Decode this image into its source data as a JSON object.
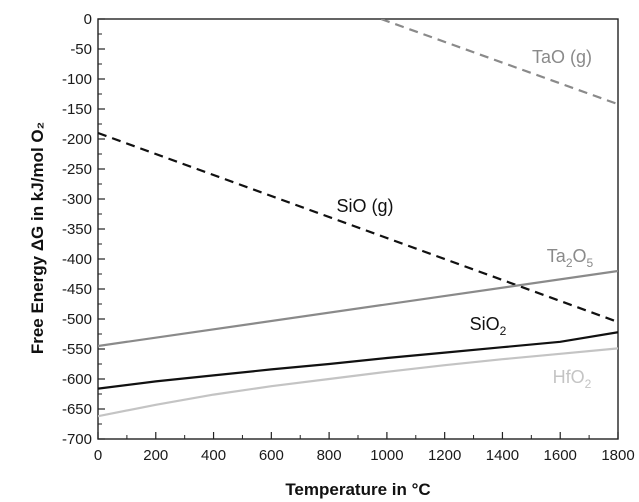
{
  "chart_data": {
    "type": "line",
    "title": "",
    "xlabel": "Temperature in °C",
    "ylabel": "Free Energy ΔG in kJ/mol O₂",
    "xlim": [
      0,
      1800
    ],
    "ylim": [
      -700,
      0
    ],
    "x_ticks": [
      0,
      200,
      400,
      600,
      800,
      1000,
      1200,
      1400,
      1600,
      1800
    ],
    "y_ticks": [
      0,
      -50,
      -100,
      -150,
      -200,
      -250,
      -300,
      -350,
      -400,
      -450,
      -500,
      -550,
      -600,
      -650,
      -700
    ],
    "grid": false,
    "series": [
      {
        "key": "tao",
        "name": "TaO (g)",
        "name_parts": [
          {
            "text": "TaO (g)",
            "sub": false
          }
        ],
        "style": "dashed",
        "color": "#8a8a8a",
        "x": [
          980,
          1800
        ],
        "y": [
          0,
          -142
        ]
      },
      {
        "key": "sio",
        "name": "SiO (g)",
        "name_parts": [
          {
            "text": "SiO (g)",
            "sub": false
          }
        ],
        "style": "dashed",
        "color": "#111111",
        "x": [
          0,
          1800
        ],
        "y": [
          -190,
          -505
        ]
      },
      {
        "key": "ta2o5",
        "name": "Ta2O5",
        "name_parts": [
          {
            "text": "Ta",
            "sub": false
          },
          {
            "text": "2",
            "sub": true
          },
          {
            "text": "O",
            "sub": false
          },
          {
            "text": "5",
            "sub": true
          }
        ],
        "style": "solid",
        "color": "#8a8a8a",
        "x": [
          0,
          1800
        ],
        "y": [
          -545,
          -420
        ]
      },
      {
        "key": "sio2",
        "name": "SiO2",
        "name_parts": [
          {
            "text": "SiO",
            "sub": false
          },
          {
            "text": "2",
            "sub": true
          }
        ],
        "style": "solid",
        "color": "#111111",
        "x": [
          0,
          200,
          400,
          600,
          800,
          1000,
          1200,
          1400,
          1600,
          1800
        ],
        "y": [
          -616,
          -604,
          -594,
          -584,
          -575,
          -565,
          -556,
          -547,
          -538,
          -522
        ]
      },
      {
        "key": "hfo2",
        "name": "HfO2",
        "name_parts": [
          {
            "text": "HfO",
            "sub": false
          },
          {
            "text": "2",
            "sub": true
          }
        ],
        "style": "solid",
        "color": "#c4c4c4",
        "x": [
          0,
          200,
          400,
          600,
          800,
          1000,
          1200,
          1400,
          1600,
          1800
        ],
        "y": [
          -662,
          -643,
          -626,
          -612,
          -600,
          -588,
          -577,
          -567,
          -558,
          -549
        ]
      }
    ]
  }
}
